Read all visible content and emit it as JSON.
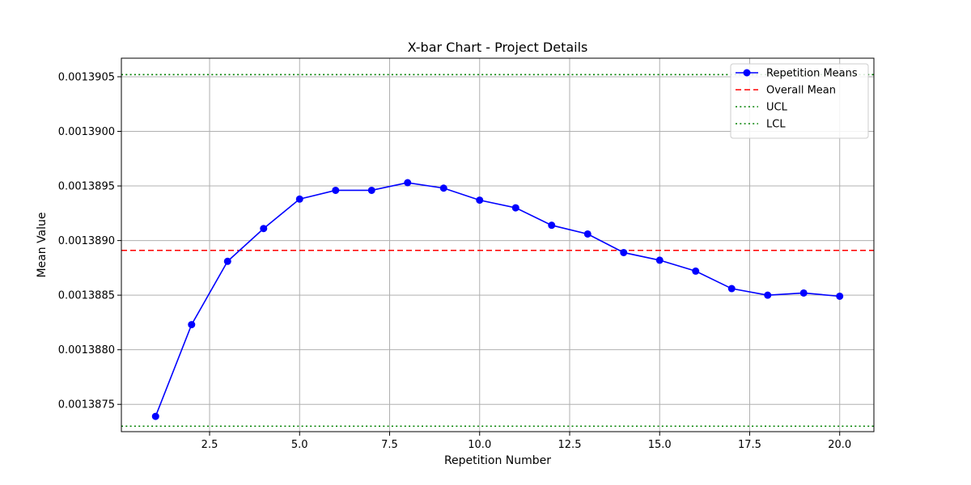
{
  "chart_data": {
    "type": "line",
    "title": "X-bar Chart - Project Details",
    "xlabel": "Repetition Number",
    "ylabel": "Mean Value",
    "xlim": [
      0.05,
      20.95
    ],
    "ylim": [
      0.00138725,
      0.00139067
    ],
    "grid": true,
    "legend_position": "top-right",
    "x_ticks": [
      2.5,
      5.0,
      7.5,
      10.0,
      12.5,
      15.0,
      17.5,
      20.0
    ],
    "x_tick_labels": [
      "2.5",
      "5.0",
      "7.5",
      "10.0",
      "12.5",
      "15.0",
      "17.5",
      "20.0"
    ],
    "y_ticks": [
      0.0013875,
      0.001388,
      0.0013885,
      0.001389,
      0.0013895,
      0.00139,
      0.0013905
    ],
    "y_tick_labels": [
      "0.0013875",
      "0.0013880",
      "0.0013885",
      "0.0013890",
      "0.0013895",
      "0.0013900",
      "0.0013905"
    ],
    "series": [
      {
        "name": "Repetition Means",
        "color": "#0000ff",
        "style": "solid-line-with-circle-markers",
        "x": [
          1,
          2,
          3,
          4,
          5,
          6,
          7,
          8,
          9,
          10,
          11,
          12,
          13,
          14,
          15,
          16,
          17,
          18,
          19,
          20
        ],
        "values": [
          0.00138739,
          0.00138823,
          0.00138881,
          0.00138911,
          0.00138938,
          0.00138946,
          0.00138946,
          0.00138953,
          0.00138948,
          0.00138937,
          0.0013893,
          0.00138914,
          0.00138906,
          0.00138889,
          0.00138882,
          0.00138872,
          0.00138856,
          0.0013885,
          0.00138852,
          0.00138849
        ]
      }
    ],
    "reference_lines": [
      {
        "name": "Overall Mean",
        "value": 0.00138891,
        "color": "#ff0000",
        "style": "dashed"
      },
      {
        "name": "UCL",
        "value": 0.00139052,
        "color": "#008000",
        "style": "dotted"
      },
      {
        "name": "LCL",
        "value": 0.0013873,
        "color": "#008000",
        "style": "dotted"
      }
    ]
  }
}
